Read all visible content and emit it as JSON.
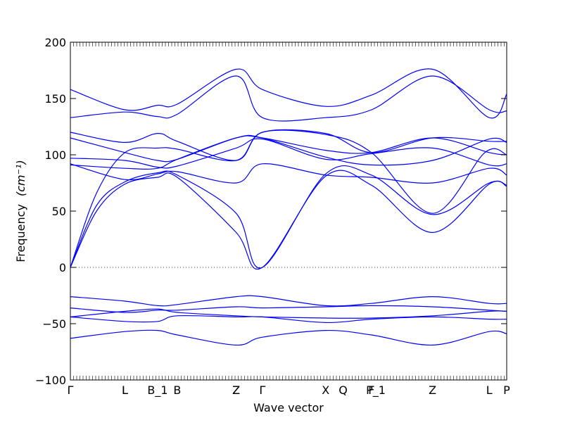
{
  "chart_data": {
    "type": "line",
    "xlabel": "Wave vector",
    "ylabel": "Frequency",
    "ylabel_unit": "(cm⁻¹)",
    "ylim": [
      -100,
      200
    ],
    "yticks": [
      -100,
      -50,
      0,
      50,
      100,
      150,
      200
    ],
    "zero_line": true,
    "line_color": "#0000ff",
    "x_points": [
      {
        "label": "Γ",
        "x": 0.0
      },
      {
        "label": "L",
        "x": 0.25
      },
      {
        "label": "L",
        "x": 0.25
      },
      {
        "label": "B_1",
        "x": 0.4
      },
      {
        "label": "B",
        "x": 0.49
      },
      {
        "label": "Z",
        "x": 0.76
      },
      {
        "label": "Z",
        "x": 0.76
      },
      {
        "label": "Γ",
        "x": 0.88
      },
      {
        "label": "X",
        "x": 1.17
      },
      {
        "label": "Q",
        "x": 1.25
      },
      {
        "label": "F",
        "x": 1.38
      },
      {
        "label": "P_1",
        "x": 1.4
      },
      {
        "label": "Z",
        "x": 1.66
      },
      {
        "label": "L",
        "x": 1.92
      },
      {
        "label": "P",
        "x": 2.0
      }
    ],
    "x_range": [
      0,
      2.0
    ],
    "series": [
      {
        "values": [
          [
            0.0,
            0
          ],
          [
            0.12,
            66
          ],
          [
            0.25,
            102
          ],
          [
            0.4,
            106
          ],
          [
            0.49,
            105
          ],
          [
            0.76,
            95
          ],
          [
            0.88,
            120
          ],
          [
            1.17,
            118
          ],
          [
            1.38,
            102
          ],
          [
            1.66,
            48
          ],
          [
            1.9,
            102
          ],
          [
            2.0,
            100
          ]
        ]
      },
      {
        "values": [
          [
            0.0,
            0
          ],
          [
            0.12,
            50
          ],
          [
            0.25,
            74
          ],
          [
            0.4,
            80
          ],
          [
            0.49,
            80
          ],
          [
            0.76,
            31
          ],
          [
            0.88,
            0
          ],
          [
            1.17,
            81
          ],
          [
            1.38,
            73
          ],
          [
            1.66,
            31
          ],
          [
            1.92,
            74
          ],
          [
            2.0,
            72
          ]
        ]
      },
      {
        "values": [
          [
            0.0,
            0
          ],
          [
            0.12,
            55
          ],
          [
            0.25,
            76
          ],
          [
            0.4,
            84
          ],
          [
            0.49,
            82
          ],
          [
            0.76,
            48
          ],
          [
            0.88,
            0
          ],
          [
            1.17,
            83
          ],
          [
            1.38,
            82
          ],
          [
            1.66,
            47
          ],
          [
            1.92,
            75
          ],
          [
            2.0,
            73
          ]
        ]
      },
      {
        "values": [
          [
            0.0,
            91
          ],
          [
            0.25,
            88
          ],
          [
            0.4,
            88
          ],
          [
            0.49,
            96
          ],
          [
            0.76,
            115
          ],
          [
            0.88,
            115
          ],
          [
            1.17,
            104
          ],
          [
            1.38,
            102
          ],
          [
            1.66,
            115
          ],
          [
            1.92,
            102
          ],
          [
            2.0,
            100
          ]
        ]
      },
      {
        "values": [
          [
            0.0,
            97
          ],
          [
            0.25,
            95
          ],
          [
            0.4,
            89
          ],
          [
            0.49,
            90
          ],
          [
            0.76,
            106
          ],
          [
            0.88,
            114
          ],
          [
            1.17,
            96
          ],
          [
            1.38,
            101
          ],
          [
            1.66,
            106
          ],
          [
            1.92,
            91
          ],
          [
            2.0,
            92
          ]
        ]
      },
      {
        "values": [
          [
            0.0,
            115
          ],
          [
            0.25,
            102
          ],
          [
            0.4,
            95
          ],
          [
            0.49,
            96
          ],
          [
            0.76,
            115
          ],
          [
            0.88,
            115
          ],
          [
            1.17,
            98
          ],
          [
            1.38,
            91
          ],
          [
            1.66,
            95
          ],
          [
            1.92,
            114
          ],
          [
            2.0,
            111
          ]
        ]
      },
      {
        "values": [
          [
            0.0,
            120
          ],
          [
            0.25,
            111
          ],
          [
            0.4,
            119
          ],
          [
            0.49,
            112
          ],
          [
            0.76,
            95
          ],
          [
            0.88,
            120
          ],
          [
            1.17,
            119
          ],
          [
            1.38,
            102
          ],
          [
            1.66,
            115
          ],
          [
            1.92,
            112
          ],
          [
            2.0,
            112
          ]
        ]
      },
      {
        "values": [
          [
            0.0,
            92
          ],
          [
            0.25,
            78
          ],
          [
            0.4,
            83
          ],
          [
            0.49,
            85
          ],
          [
            0.76,
            75
          ],
          [
            0.88,
            92
          ],
          [
            1.17,
            82
          ],
          [
            1.38,
            80
          ],
          [
            1.66,
            75
          ],
          [
            1.92,
            88
          ],
          [
            2.0,
            82
          ]
        ]
      },
      {
        "values": [
          [
            0.0,
            133
          ],
          [
            0.25,
            138
          ],
          [
            0.4,
            134
          ],
          [
            0.49,
            136
          ],
          [
            0.76,
            170
          ],
          [
            0.88,
            133
          ],
          [
            1.17,
            133
          ],
          [
            1.38,
            140
          ],
          [
            1.66,
            170
          ],
          [
            1.92,
            140
          ],
          [
            2.0,
            139
          ]
        ]
      },
      {
        "values": [
          [
            0.0,
            158
          ],
          [
            0.25,
            140
          ],
          [
            0.4,
            144
          ],
          [
            0.49,
            145
          ],
          [
            0.76,
            176
          ],
          [
            0.88,
            158
          ],
          [
            1.17,
            143
          ],
          [
            1.38,
            153
          ],
          [
            1.66,
            176
          ],
          [
            1.92,
            133
          ],
          [
            2.0,
            154
          ]
        ]
      },
      {
        "values": [
          [
            0.0,
            -26
          ],
          [
            0.25,
            -30
          ],
          [
            0.4,
            -34
          ],
          [
            0.49,
            -33
          ],
          [
            0.76,
            -26
          ],
          [
            0.88,
            -26
          ],
          [
            1.17,
            -34
          ],
          [
            1.38,
            -32
          ],
          [
            1.66,
            -26
          ],
          [
            1.92,
            -32
          ],
          [
            2.0,
            -32
          ]
        ]
      },
      {
        "values": [
          [
            0.0,
            -36
          ],
          [
            0.25,
            -40
          ],
          [
            0.4,
            -38
          ],
          [
            0.49,
            -38
          ],
          [
            0.76,
            -35
          ],
          [
            0.88,
            -36
          ],
          [
            1.17,
            -35
          ],
          [
            1.38,
            -34
          ],
          [
            1.66,
            -35
          ],
          [
            1.92,
            -38
          ],
          [
            2.0,
            -39
          ]
        ]
      },
      {
        "values": [
          [
            0.0,
            -44
          ],
          [
            0.25,
            -39
          ],
          [
            0.4,
            -37
          ],
          [
            0.49,
            -40
          ],
          [
            0.76,
            -43
          ],
          [
            0.88,
            -44
          ],
          [
            1.17,
            -45
          ],
          [
            1.38,
            -45
          ],
          [
            1.66,
            -43
          ],
          [
            1.92,
            -39
          ],
          [
            2.0,
            -39
          ]
        ]
      },
      {
        "values": [
          [
            0.0,
            -44
          ],
          [
            0.25,
            -48
          ],
          [
            0.4,
            -48
          ],
          [
            0.49,
            -43
          ],
          [
            0.76,
            -44
          ],
          [
            0.88,
            -44
          ],
          [
            1.17,
            -49
          ],
          [
            1.38,
            -46
          ],
          [
            1.66,
            -44
          ],
          [
            1.92,
            -46
          ],
          [
            2.0,
            -46
          ]
        ]
      },
      {
        "values": [
          [
            0.0,
            -63
          ],
          [
            0.25,
            -57
          ],
          [
            0.4,
            -56
          ],
          [
            0.49,
            -60
          ],
          [
            0.76,
            -69
          ],
          [
            0.88,
            -62
          ],
          [
            1.17,
            -56
          ],
          [
            1.38,
            -60
          ],
          [
            1.66,
            -69
          ],
          [
            1.92,
            -57
          ],
          [
            2.0,
            -59
          ]
        ]
      }
    ]
  }
}
